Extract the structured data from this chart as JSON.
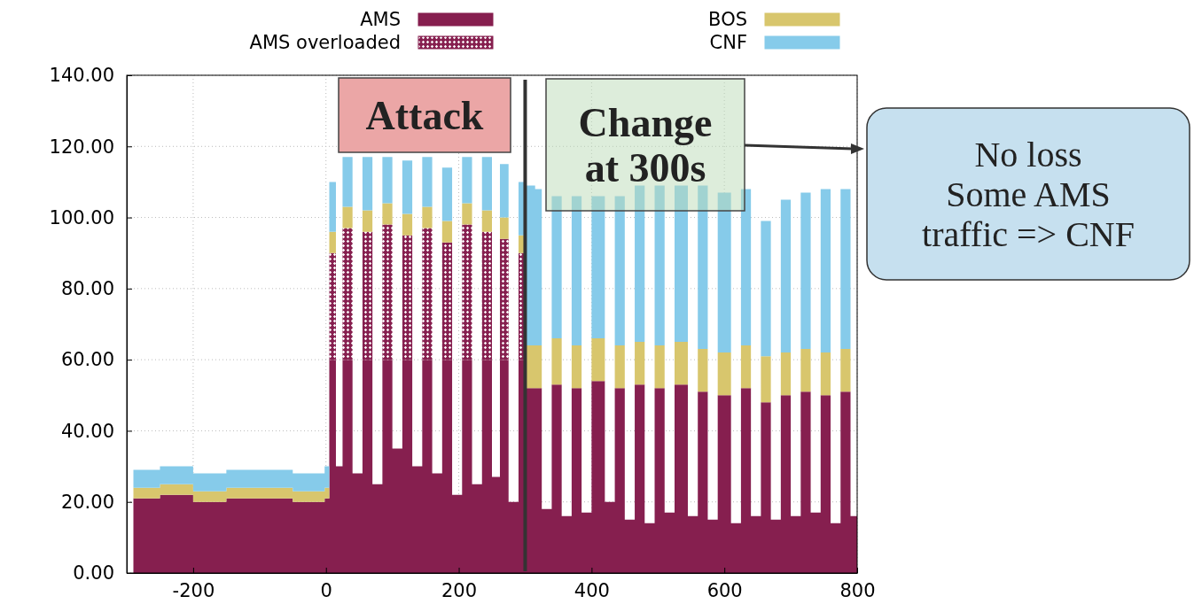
{
  "chart_data": {
    "type": "area",
    "stacked": true,
    "legend": "top",
    "grid": true,
    "x": [
      -290,
      -250,
      -200,
      -150,
      -100,
      -50,
      -10,
      -2,
      5,
      15,
      25,
      40,
      55,
      70,
      85,
      100,
      115,
      130,
      145,
      160,
      175,
      190,
      205,
      220,
      235,
      250,
      262,
      275,
      290,
      298,
      302,
      315,
      325,
      340,
      355,
      370,
      385,
      400,
      420,
      435,
      450,
      465,
      480,
      495,
      510,
      525,
      545,
      560,
      575,
      590,
      610,
      625,
      640,
      655,
      670,
      685,
      700,
      715,
      730,
      745,
      760,
      775,
      790,
      800
    ],
    "series": [
      {
        "name": "AMS",
        "color": "#861f4f",
        "values": [
          21,
          22,
          20,
          21,
          21,
          20,
          20,
          21,
          60,
          30,
          60,
          28,
          60,
          25,
          60,
          35,
          60,
          30,
          60,
          28,
          60,
          22,
          60,
          25,
          60,
          27,
          60,
          20,
          60,
          60,
          52,
          52,
          18,
          53,
          16,
          52,
          17,
          54,
          20,
          52,
          15,
          53,
          14,
          52,
          17,
          53,
          16,
          51,
          15,
          50,
          14,
          52,
          16,
          48,
          15,
          50,
          16,
          51,
          17,
          50,
          14,
          51,
          16,
          54
        ]
      },
      {
        "name": "AMS overloaded",
        "color": "#861f4f",
        "values": [
          0,
          0,
          0,
          0,
          0,
          0,
          0,
          0,
          30,
          0,
          37,
          0,
          36,
          0,
          38,
          0,
          35,
          0,
          37,
          0,
          33,
          0,
          38,
          0,
          36,
          0,
          34,
          0,
          30,
          30,
          0,
          0,
          0,
          0,
          0,
          0,
          0,
          0,
          0,
          0,
          0,
          0,
          0,
          0,
          0,
          0,
          0,
          0,
          0,
          0,
          0,
          0,
          0,
          0,
          0,
          0,
          0,
          0,
          0,
          0,
          0,
          0,
          0,
          0
        ]
      },
      {
        "name": "BOS",
        "color": "#d8c66d",
        "values": [
          3,
          3,
          3,
          3,
          3,
          3,
          3,
          3,
          6,
          0,
          6,
          0,
          6,
          0,
          6,
          0,
          6,
          0,
          6,
          0,
          6,
          0,
          6,
          0,
          6,
          0,
          6,
          0,
          5,
          5,
          12,
          12,
          0,
          13,
          0,
          12,
          0,
          12,
          0,
          12,
          0,
          12,
          0,
          12,
          0,
          12,
          0,
          12,
          0,
          12,
          0,
          12,
          0,
          13,
          0,
          12,
          0,
          12,
          0,
          12,
          0,
          12,
          0,
          12
        ]
      },
      {
        "name": "CNF",
        "color": "#86cbea",
        "values": [
          5,
          5,
          5,
          5,
          5,
          5,
          5,
          6,
          14,
          0,
          14,
          0,
          15,
          0,
          13,
          0,
          15,
          0,
          14,
          0,
          15,
          0,
          13,
          0,
          15,
          0,
          15,
          0,
          15,
          15,
          45,
          44,
          0,
          40,
          0,
          42,
          0,
          40,
          0,
          42,
          0,
          44,
          0,
          45,
          0,
          44,
          0,
          46,
          0,
          45,
          0,
          44,
          0,
          38,
          0,
          43,
          0,
          44,
          0,
          46,
          0,
          45,
          0,
          42
        ]
      }
    ],
    "xlim": [
      -300,
      800
    ],
    "xticks": [
      -200,
      0,
      200,
      400,
      600,
      800
    ],
    "ylim": [
      0,
      140
    ],
    "yticks": [
      {
        "value": 0,
        "label": "0.00"
      },
      {
        "value": 20,
        "label": "20.00"
      },
      {
        "value": 40,
        "label": "40.00"
      },
      {
        "value": 60,
        "label": "60.00"
      },
      {
        "value": 80,
        "label": "80.00"
      },
      {
        "value": 100,
        "label": "100.00"
      },
      {
        "value": 120,
        "label": "120.00"
      },
      {
        "value": 140,
        "label": "140.00"
      }
    ],
    "ref_lines": [
      {
        "axis": "x",
        "value": 300,
        "color": "#333333"
      }
    ],
    "annotations": [
      "Attack",
      "Change\nat 300s",
      "No loss\nSome AMS\ntraffic => CNF"
    ]
  }
}
